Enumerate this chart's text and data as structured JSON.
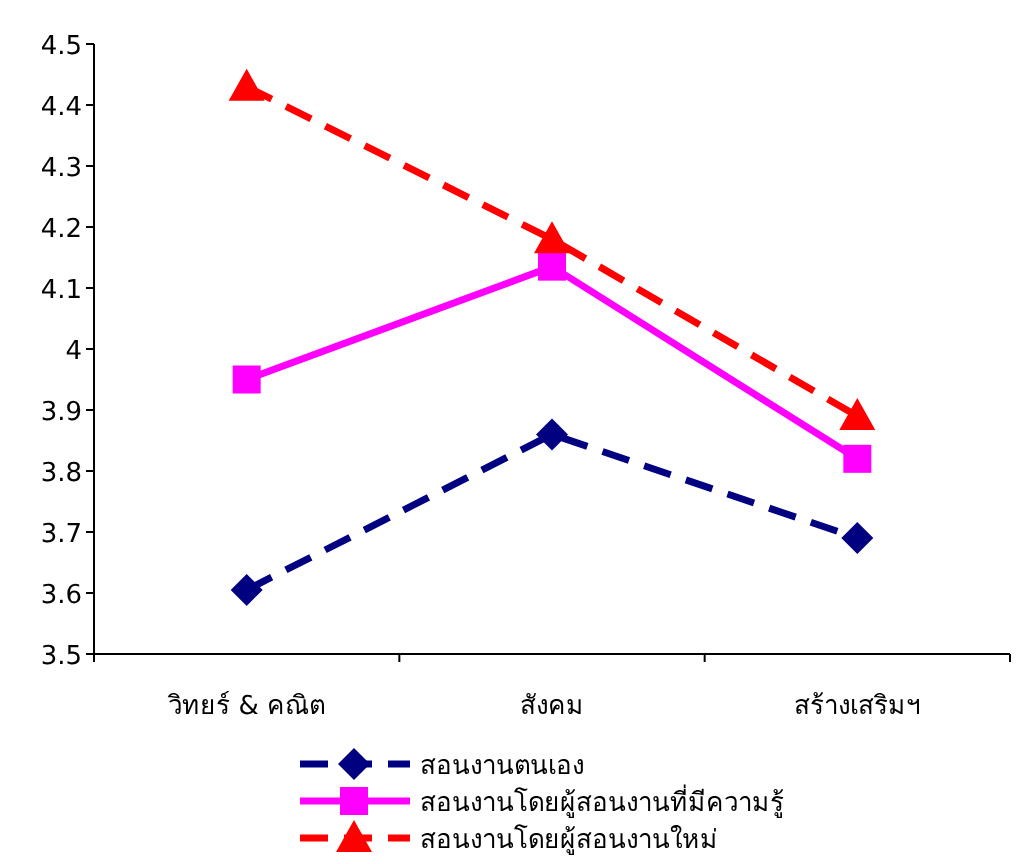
{
  "chart_data": {
    "type": "line",
    "categories": [
      "วิทยร์ & คณิต",
      "สังคม",
      "สร้างเสริมฯ"
    ],
    "ylim": [
      3.5,
      4.5
    ],
    "yticks": [
      3.5,
      3.6,
      3.7,
      3.8,
      3.9,
      4,
      4.1,
      4.2,
      4.3,
      4.4,
      4.5
    ],
    "grid": false,
    "legend": "bottom",
    "series": [
      {
        "name": "สอนงานตนเอง",
        "color": "#000080",
        "marker": "diamond",
        "line_style": "dashed",
        "values": [
          3.605,
          3.86,
          3.69
        ]
      },
      {
        "name": "สอนงานโดยผู้สอนงานที่มีความรู้",
        "color": "#ff00ff",
        "marker": "square",
        "line_style": "solid",
        "values": [
          3.95,
          4.135,
          3.82
        ]
      },
      {
        "name": "สอนงานโดยผู้สอนงานใหม่",
        "color": "#ff0000",
        "marker": "triangle",
        "line_style": "dashed",
        "values": [
          4.43,
          4.18,
          3.89
        ]
      }
    ]
  }
}
